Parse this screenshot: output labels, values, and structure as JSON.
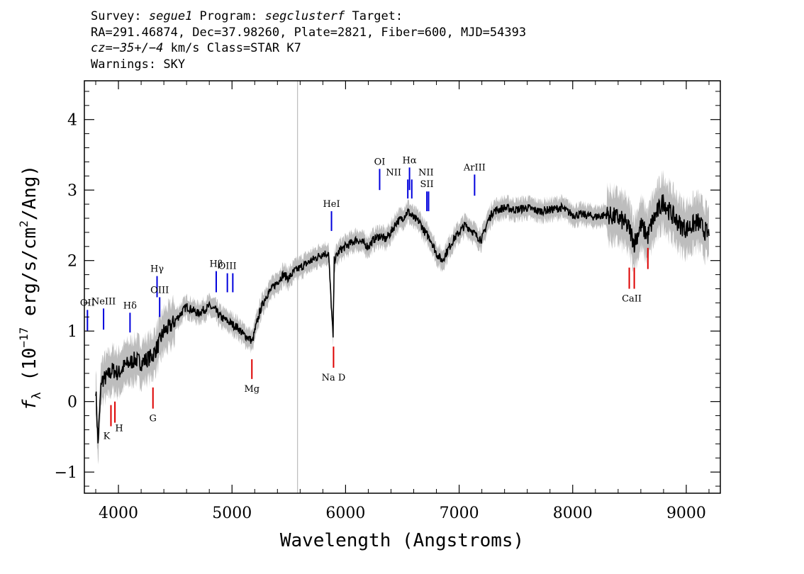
{
  "header": {
    "line1_a": "Survey: ",
    "survey": "segue1",
    "line1_b": " Program: ",
    "program": "segclusterf",
    "line1_c": " Target:",
    "line2": "RA=291.46874, Dec=37.98260, Plate=2821, Fiber=600, MJD=54393",
    "line3_a": "cz=−35+/−4",
    "line3_b": " km/s Class=STAR K7",
    "line4": "Warnings: SKY"
  },
  "colors": {
    "flux": "#000000",
    "error": "#bdbdbd",
    "emission_marker": "#0000dd",
    "absorption_marker": "#dd0000"
  },
  "chart_data": {
    "type": "line",
    "xlabel": "Wavelength (Angstroms)",
    "ylabel": "f_λ (10^-17 erg/s/cm^2/Ang)",
    "xlim": [
      3700,
      9300
    ],
    "ylim": [
      -1.3,
      4.55
    ],
    "xticks": [
      4000,
      5000,
      6000,
      7000,
      8000,
      9000
    ],
    "yticks": [
      -1,
      0,
      1,
      2,
      3,
      4
    ],
    "grid": false,
    "series": [
      {
        "x": [
          3800,
          3820,
          3850,
          3900,
          3950,
          4000,
          4050,
          4100,
          4150,
          4200,
          4250,
          4300,
          4350,
          4400,
          4450,
          4500,
          4550,
          4600,
          4650,
          4700,
          4750,
          4800,
          4850,
          4900,
          4950,
          5000,
          5050,
          5100,
          5150,
          5180,
          5200,
          5250,
          5300,
          5350,
          5400,
          5450,
          5500,
          5550,
          5600,
          5650,
          5700,
          5750,
          5800,
          5850,
          5890,
          5900,
          5950,
          6000,
          6050,
          6100,
          6150,
          6200,
          6250,
          6300,
          6350,
          6400,
          6450,
          6500,
          6550,
          6600,
          6650,
          6700,
          6750,
          6800,
          6850,
          6900,
          6950,
          7000,
          7050,
          7100,
          7150,
          7200,
          7250,
          7300,
          7400,
          7500,
          7600,
          7700,
          7800,
          7900,
          8000,
          8100,
          8200,
          8300,
          8400,
          8450,
          8500,
          8542,
          8600,
          8662,
          8700,
          8800,
          8850,
          8900,
          8950,
          9000,
          9050,
          9100,
          9150,
          9200
        ],
        "y": [
          0.2,
          -0.6,
          0.3,
          0.35,
          0.45,
          0.4,
          0.5,
          0.55,
          0.6,
          0.55,
          0.6,
          0.65,
          0.8,
          1.0,
          1.05,
          1.15,
          1.25,
          1.35,
          1.3,
          1.25,
          1.3,
          1.35,
          1.3,
          1.2,
          1.15,
          1.1,
          1.05,
          0.95,
          0.9,
          0.85,
          1.0,
          1.3,
          1.5,
          1.6,
          1.7,
          1.8,
          1.75,
          1.85,
          1.9,
          1.95,
          2.0,
          2.05,
          2.1,
          2.1,
          0.9,
          2.0,
          2.15,
          2.2,
          2.25,
          2.3,
          2.25,
          2.2,
          2.3,
          2.35,
          2.3,
          2.4,
          2.55,
          2.6,
          2.7,
          2.6,
          2.55,
          2.4,
          2.3,
          2.1,
          2.0,
          2.15,
          2.3,
          2.4,
          2.5,
          2.45,
          2.35,
          2.3,
          2.55,
          2.7,
          2.75,
          2.72,
          2.75,
          2.7,
          2.72,
          2.75,
          2.65,
          2.65,
          2.62,
          2.65,
          2.6,
          2.55,
          2.45,
          2.25,
          2.5,
          2.35,
          2.55,
          2.85,
          2.7,
          2.6,
          2.5,
          2.45,
          2.5,
          2.55,
          2.45,
          2.35
        ]
      }
    ],
    "emission_lines": [
      {
        "label": "OII",
        "x": 3727,
        "y1": 1.0,
        "y2": 1.3
      },
      {
        "label": "NeIII",
        "x": 3869,
        "y1": 1.02,
        "y2": 1.32
      },
      {
        "label": "Hδ",
        "x": 4102,
        "y1": 0.98,
        "y2": 1.26
      },
      {
        "label": "Hγ",
        "x": 4340,
        "y1": 1.48,
        "y2": 1.78
      },
      {
        "label": "OIII",
        "x": 4363,
        "y1": 1.2,
        "y2": 1.48
      },
      {
        "label": "Hβ",
        "x": 4861,
        "y1": 1.55,
        "y2": 1.85
      },
      {
        "label": "OIII",
        "x": 4959,
        "y1": 1.55,
        "y2": 1.82
      },
      {
        "label": "OIII",
        "x": 5007,
        "y1": 1.55,
        "y2": 1.82
      },
      {
        "label": "HeI",
        "x": 5876,
        "y1": 2.42,
        "y2": 2.7
      },
      {
        "label": "OI",
        "x": 6300,
        "y1": 3.0,
        "y2": 3.3
      },
      {
        "label": "NII",
        "x": 6548,
        "y1": 2.88,
        "y2": 3.15
      },
      {
        "label": "Hα",
        "x": 6563,
        "y1": 3.0,
        "y2": 3.32
      },
      {
        "label": "NII",
        "x": 6583,
        "y1": 2.88,
        "y2": 3.15
      },
      {
        "label": "SII",
        "x": 6716,
        "y1": 2.7,
        "y2": 2.98
      },
      {
        "label": "SII",
        "x": 6731,
        "y1": 2.7,
        "y2": 2.98
      },
      {
        "label": "ArIII",
        "x": 7136,
        "y1": 2.92,
        "y2": 3.22
      }
    ],
    "absorption_lines": [
      {
        "label": "K",
        "x": 3934,
        "y1": -0.35,
        "y2": -0.05
      },
      {
        "label": "H",
        "x": 3969,
        "y1": -0.3,
        "y2": 0.0
      },
      {
        "label": "G",
        "x": 4304,
        "y1": -0.1,
        "y2": 0.2
      },
      {
        "label": "Mg",
        "x": 5175,
        "y1": 0.32,
        "y2": 0.6
      },
      {
        "label": "Na D",
        "x": 5894,
        "y1": 0.48,
        "y2": 0.78
      },
      {
        "label": "CaII",
        "x": 8498,
        "y1": 1.6,
        "y2": 1.9
      },
      {
        "label": "CaII",
        "x": 8542,
        "y1": 1.6,
        "y2": 1.9
      },
      {
        "label": "CaII",
        "x": 8662,
        "y1": 1.88,
        "y2": 2.18
      }
    ],
    "sky_spike_x": 5577
  }
}
